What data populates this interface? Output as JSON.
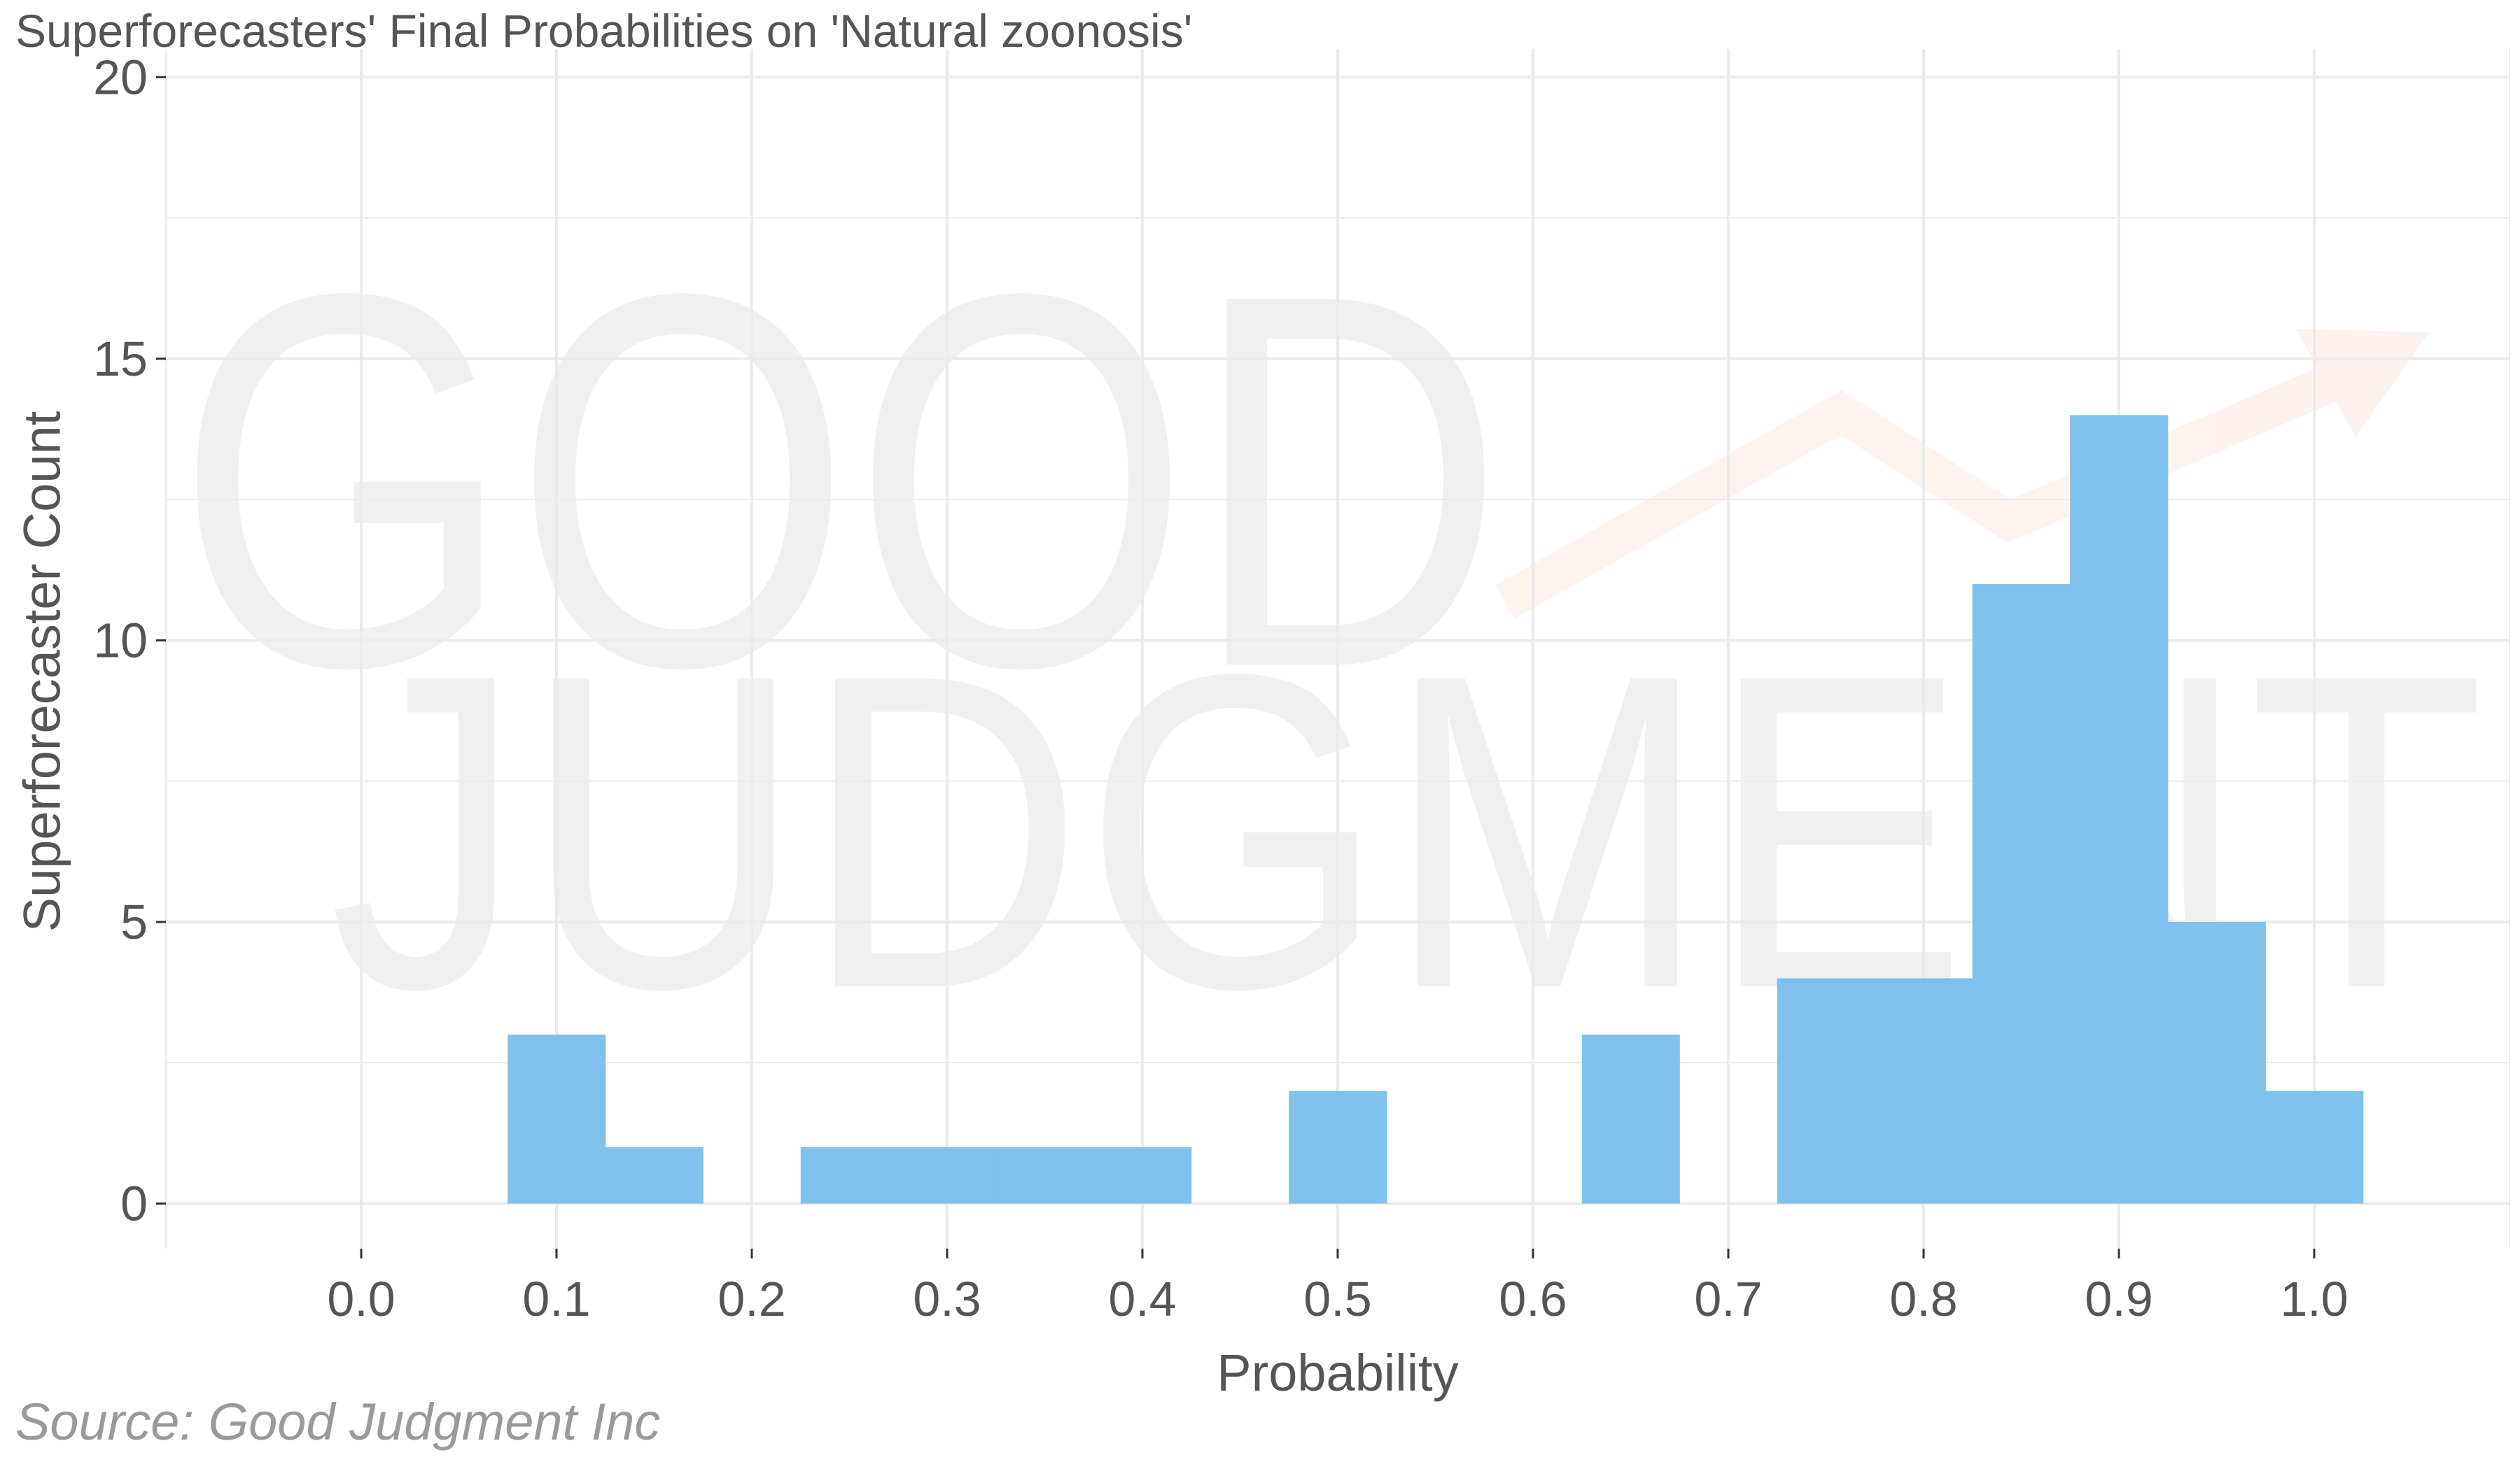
{
  "chart_data": {
    "type": "bar",
    "title": "Superforecasters' Final Probabilities on 'Natural zoonosis'",
    "xlabel": "Probability",
    "ylabel": "Superforecaster Count",
    "source": "Source: Good Judgment Inc",
    "watermark": [
      "GOOD",
      "JUDGMENT"
    ],
    "bin_width": 0.05,
    "x": [
      0.1,
      0.15,
      0.25,
      0.3,
      0.35,
      0.4,
      0.5,
      0.65,
      0.75,
      0.8,
      0.85,
      0.9,
      0.95,
      1.0
    ],
    "values": [
      3,
      1,
      1,
      1,
      1,
      1,
      2,
      3,
      4,
      4,
      11,
      14,
      5,
      2
    ],
    "xlim": [
      -0.1,
      1.1
    ],
    "ylim": [
      -0.8,
      20.5
    ],
    "xticks": [
      0.0,
      0.1,
      0.2,
      0.3,
      0.4,
      0.5,
      0.6,
      0.7,
      0.8,
      0.9,
      1.0
    ],
    "xtick_labels": [
      "0.0",
      "0.1",
      "0.2",
      "0.3",
      "0.4",
      "0.5",
      "0.6",
      "0.7",
      "0.8",
      "0.9",
      "1.0"
    ],
    "yticks": [
      0,
      5,
      10,
      15,
      20
    ],
    "ytick_labels": [
      "0",
      "5",
      "10",
      "15",
      "20"
    ],
    "grid": true,
    "bar_color": "#7bbfec",
    "grid_color": "#ebebeb",
    "text_color": "#555555",
    "watermark_arrow_color": "#f4a584"
  }
}
